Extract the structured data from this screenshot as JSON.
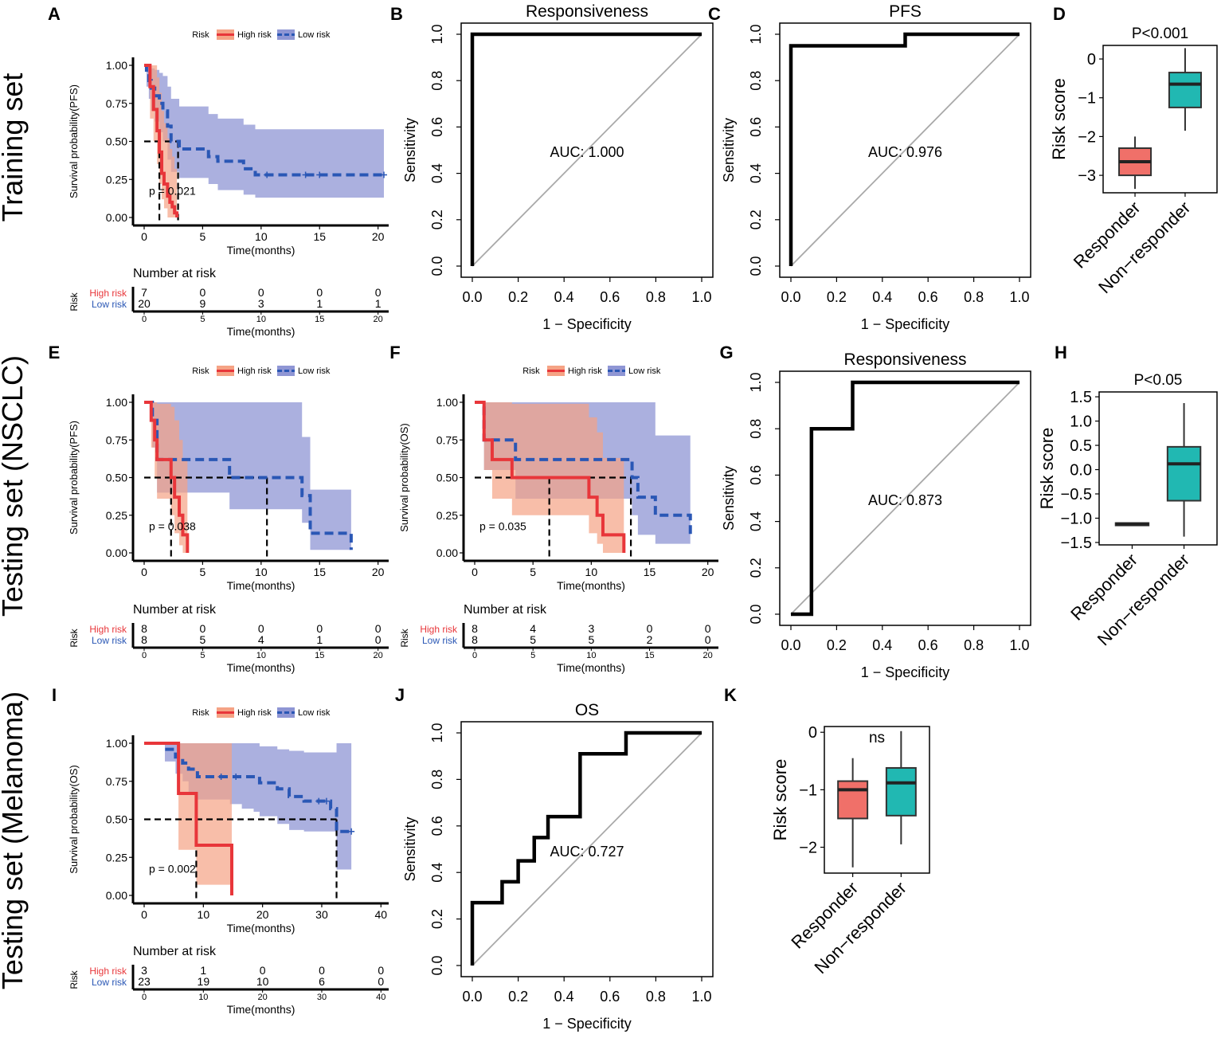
{
  "figure": {
    "width": 1533,
    "height": 1303
  },
  "colors": {
    "high": "#e8363a",
    "high_band": "#f5a385",
    "low": "#2a57b5",
    "low_band": "#8f96d4",
    "box_red": "#f07069",
    "box_teal": "#21b8b2",
    "diag": "#a9a9a9",
    "black": "#000000"
  },
  "row_labels": [
    "Training set",
    "Testing set (NSCLC)",
    "Testing set (Melanoma)"
  ],
  "legend": {
    "title": "Risk",
    "high": "High risk",
    "low": "Low risk"
  },
  "risk_table": {
    "title": "Number at risk",
    "group_label": "Risk",
    "high_label": "High risk",
    "low_label": "Low risk",
    "xlabel": "Time(months)"
  },
  "chart_data": [
    {
      "id": "A",
      "type": "line",
      "subtype": "kaplan-meier",
      "ylabel": "Survival probability(PFS)",
      "xlabel": "Time(months)",
      "xlim": [
        0,
        20.5
      ],
      "ylim": [
        0,
        1
      ],
      "xticks": [
        0,
        5,
        10,
        15,
        20
      ],
      "yticks": [
        0.0,
        0.25,
        0.5,
        0.75,
        1.0
      ],
      "ytick_labels": [
        "0.00",
        "0.25",
        "0.50",
        "0.75",
        "1.00"
      ],
      "pvalue": "p = 0.021",
      "series": [
        {
          "name": "High risk",
          "x": [
            0,
            0.5,
            0.8,
            1.1,
            1.3,
            1.5,
            1.7,
            2.0,
            2.2,
            2.4,
            2.6,
            2.8
          ],
          "y": [
            1.0,
            0.86,
            0.71,
            0.57,
            0.43,
            0.29,
            0.22,
            0.14,
            0.1,
            0.07,
            0.03,
            0.0
          ],
          "band_x": [
            0,
            0.5,
            0.8,
            1.1,
            1.3,
            1.5,
            1.7,
            2.0,
            2.2,
            2.4,
            2.6,
            2.8
          ],
          "band_lo": [
            1.0,
            0.65,
            0.5,
            0.35,
            0.22,
            0.12,
            0.06,
            0.0,
            0.0,
            0.0,
            0.0,
            0.0
          ],
          "band_hi": [
            1.0,
            1.0,
            1.0,
            0.92,
            0.82,
            0.7,
            0.62,
            0.52,
            0.45,
            0.4,
            0.32,
            0.28
          ]
        },
        {
          "name": "Low risk",
          "x": [
            0,
            0.2,
            0.4,
            0.6,
            0.9,
            1.3,
            1.6,
            2.0,
            2.3,
            3.0,
            5.5,
            6.3,
            7.0,
            8.5,
            9.5,
            20.5
          ],
          "y": [
            1.0,
            0.95,
            0.9,
            0.85,
            0.8,
            0.75,
            0.7,
            0.6,
            0.5,
            0.45,
            0.4,
            0.37,
            0.37,
            0.32,
            0.28,
            0.28
          ],
          "band_x": [
            0,
            0.2,
            0.4,
            0.6,
            0.9,
            1.3,
            1.6,
            2.0,
            2.3,
            3.0,
            5.5,
            6.3,
            7.0,
            8.5,
            9.5,
            20.5
          ],
          "band_lo": [
            1.0,
            0.86,
            0.78,
            0.7,
            0.63,
            0.56,
            0.5,
            0.38,
            0.3,
            0.26,
            0.22,
            0.18,
            0.18,
            0.15,
            0.13,
            0.13
          ],
          "band_hi": [
            1.0,
            1.0,
            1.0,
            0.98,
            0.97,
            0.95,
            0.93,
            0.86,
            0.78,
            0.73,
            0.68,
            0.65,
            0.65,
            0.61,
            0.58,
            0.58
          ],
          "censor_x": [
            10.5,
            13.8,
            15.0,
            20.5
          ]
        }
      ],
      "median_x": [
        1.3,
        2.9
      ],
      "table": {
        "high": [
          "7",
          "0",
          "0",
          "0",
          "0"
        ],
        "low": [
          "20",
          "9",
          "3",
          "1",
          "1"
        ],
        "ticks": [
          "0",
          "5",
          "10",
          "15",
          "20"
        ]
      }
    },
    {
      "id": "B",
      "type": "line",
      "subtype": "roc",
      "title": "Responsiveness",
      "xlabel": "1 − Specificity",
      "ylabel": "Sensitivity",
      "xlim": [
        0,
        1
      ],
      "ylim": [
        0,
        1
      ],
      "ticks": [
        "0.0",
        "0.2",
        "0.4",
        "0.6",
        "0.8",
        "1.0"
      ],
      "auc": "AUC: 1.000",
      "x": [
        0,
        0,
        1
      ],
      "y": [
        0,
        1,
        1
      ]
    },
    {
      "id": "C",
      "type": "line",
      "subtype": "roc",
      "title": "PFS",
      "xlabel": "1 − Specificity",
      "ylabel": "Sensitivity",
      "xlim": [
        0,
        1
      ],
      "ylim": [
        0,
        1
      ],
      "ticks": [
        "0.0",
        "0.2",
        "0.4",
        "0.6",
        "0.8",
        "1.0"
      ],
      "auc": "AUC: 0.976",
      "x": [
        0,
        0,
        0.5,
        0.5,
        1
      ],
      "y": [
        0,
        0.95,
        0.95,
        1,
        1
      ]
    },
    {
      "id": "D",
      "type": "box",
      "title": "P<0.001",
      "ylabel": "Risk score",
      "ylim": [
        -3.45,
        0.35
      ],
      "yticks": [
        0,
        -1,
        -2,
        -3
      ],
      "ytick_labels": [
        "0",
        "−1",
        "−2",
        "−3"
      ],
      "categories": [
        "Responder",
        "Non−responder"
      ],
      "boxes": [
        {
          "min": -3.35,
          "q1": -3.0,
          "median": -2.65,
          "q3": -2.3,
          "max": -2.0
        },
        {
          "min": -1.85,
          "q1": -1.25,
          "median": -0.65,
          "q3": -0.35,
          "max": 0.28
        }
      ]
    },
    {
      "id": "E",
      "type": "line",
      "subtype": "kaplan-meier",
      "ylabel": "Survival probability(PFS)",
      "xlabel": "Time(months)",
      "xlim": [
        0,
        20.5
      ],
      "ylim": [
        0,
        1
      ],
      "xticks": [
        0,
        5,
        10,
        15,
        20
      ],
      "yticks": [
        0.0,
        0.25,
        0.5,
        0.75,
        1.0
      ],
      "ytick_labels": [
        "0.00",
        "0.25",
        "0.50",
        "0.75",
        "1.00"
      ],
      "pvalue": "p = 0.038",
      "series": [
        {
          "name": "High risk",
          "x": [
            0,
            0.6,
            0.9,
            1.1,
            2.3,
            2.6,
            3.0,
            3.3,
            3.7
          ],
          "y": [
            1.0,
            0.88,
            0.75,
            0.62,
            0.5,
            0.37,
            0.25,
            0.12,
            0.0
          ],
          "band_x": [
            0,
            0.6,
            0.9,
            1.1,
            2.3,
            2.6,
            3.0,
            3.3,
            3.7
          ],
          "band_lo": [
            1.0,
            0.7,
            0.5,
            0.36,
            0.25,
            0.13,
            0.05,
            0.0,
            0.0
          ],
          "band_hi": [
            1.0,
            1.0,
            1.0,
            0.99,
            0.97,
            0.88,
            0.75,
            0.62,
            0.55
          ]
        },
        {
          "name": "Low risk",
          "x": [
            0,
            0.7,
            1.1,
            7.3,
            13.5,
            14.2,
            17.7
          ],
          "y": [
            1.0,
            0.88,
            0.62,
            0.5,
            0.38,
            0.13,
            0.02
          ],
          "band_x": [
            0,
            0.7,
            1.1,
            7.3,
            13.5,
            14.2,
            17.7
          ],
          "band_lo": [
            1.0,
            0.7,
            0.4,
            0.29,
            0.2,
            0.02,
            0.02
          ],
          "band_hi": [
            1.0,
            1.0,
            1.0,
            1.0,
            0.77,
            0.42,
            0.42
          ],
          "censor_x": []
        }
      ],
      "median_x": [
        2.3,
        10.5
      ],
      "table": {
        "high": [
          "8",
          "0",
          "0",
          "0",
          "0"
        ],
        "low": [
          "8",
          "5",
          "4",
          "1",
          "0"
        ],
        "ticks": [
          "0",
          "5",
          "10",
          "15",
          "20"
        ]
      }
    },
    {
      "id": "F",
      "type": "line",
      "subtype": "kaplan-meier",
      "ylabel": "Survival probability(OS)",
      "xlabel": "Time(months)",
      "xlim": [
        0,
        20.5
      ],
      "ylim": [
        0,
        1
      ],
      "xticks": [
        0,
        5,
        10,
        15,
        20
      ],
      "yticks": [
        0.0,
        0.25,
        0.5,
        0.75,
        1.0
      ],
      "ytick_labels": [
        "0.00",
        "0.25",
        "0.50",
        "0.75",
        "1.00"
      ],
      "pvalue": "p = 0.035",
      "series": [
        {
          "name": "High risk",
          "x": [
            0,
            0.8,
            1.5,
            3.2,
            9.8,
            10.5,
            11.0,
            12.8
          ],
          "y": [
            1.0,
            0.75,
            0.62,
            0.5,
            0.37,
            0.25,
            0.12,
            0.0
          ],
          "band_x": [
            0,
            0.8,
            1.5,
            3.2,
            9.8,
            10.5,
            11.0,
            12.8
          ],
          "band_lo": [
            1.0,
            0.55,
            0.36,
            0.25,
            0.13,
            0.06,
            0.0,
            0.0
          ],
          "band_hi": [
            1.0,
            1.0,
            1.0,
            0.99,
            0.9,
            0.8,
            0.63,
            0.55
          ]
        },
        {
          "name": "Low risk",
          "x": [
            0,
            0.8,
            3.5,
            13.5,
            14.0,
            15.5,
            18.5
          ],
          "y": [
            1.0,
            0.75,
            0.62,
            0.5,
            0.37,
            0.25,
            0.12
          ],
          "band_x": [
            0,
            0.8,
            3.5,
            13.5,
            14.0,
            15.5,
            18.5
          ],
          "band_lo": [
            1.0,
            0.55,
            0.36,
            0.25,
            0.12,
            0.06,
            0.05
          ],
          "band_hi": [
            1.0,
            1.0,
            1.0,
            1.0,
            1.0,
            0.78,
            0.6
          ],
          "censor_x": []
        }
      ],
      "median_x": [
        6.4,
        13.4
      ],
      "table": {
        "high": [
          "8",
          "4",
          "3",
          "0",
          "0"
        ],
        "low": [
          "8",
          "5",
          "5",
          "2",
          "0"
        ],
        "ticks": [
          "0",
          "5",
          "10",
          "15",
          "20"
        ]
      }
    },
    {
      "id": "G",
      "type": "line",
      "subtype": "roc",
      "title": "Responsiveness",
      "xlabel": "1 − Specificity",
      "ylabel": "Sensitivity",
      "xlim": [
        0,
        1
      ],
      "ylim": [
        0,
        1
      ],
      "ticks": [
        "0.0",
        "0.2",
        "0.4",
        "0.6",
        "0.8",
        "1.0"
      ],
      "auc": "AUC: 0.873",
      "x": [
        0,
        0.09,
        0.09,
        0.27,
        0.27,
        1
      ],
      "y": [
        0,
        0,
        0.8,
        0.8,
        1,
        1
      ]
    },
    {
      "id": "H",
      "type": "box",
      "title": "P<0.05",
      "ylabel": "Risk score",
      "ylim": [
        -1.55,
        1.6
      ],
      "yticks": [
        1.5,
        1.0,
        0.5,
        0.0,
        -0.5,
        -1.0,
        -1.5
      ],
      "ytick_labels": [
        "1.5",
        "1.0",
        "0.5",
        "0.0",
        "−0.5",
        "−1.0",
        "−1.5"
      ],
      "categories": [
        "Responder",
        "Non−responder"
      ],
      "boxes": [
        {
          "min": -1.14,
          "q1": -1.14,
          "median": -1.12,
          "q3": -1.1,
          "max": -1.1
        },
        {
          "min": -1.38,
          "q1": -0.64,
          "median": 0.12,
          "q3": 0.47,
          "max": 1.37
        }
      ]
    },
    {
      "id": "I",
      "type": "line",
      "subtype": "kaplan-meier",
      "ylabel": "Survival probability(OS)",
      "xlabel": "Time(months)",
      "xlim": [
        0,
        40.5
      ],
      "ylim": [
        0,
        1
      ],
      "xticks": [
        0,
        10,
        20,
        30,
        40
      ],
      "yticks": [
        0.0,
        0.25,
        0.5,
        0.75,
        1.0
      ],
      "ytick_labels": [
        "0.00",
        "0.25",
        "0.50",
        "0.75",
        "1.00"
      ],
      "pvalue": "p = 0.002",
      "series": [
        {
          "name": "High risk",
          "x": [
            0,
            5.8,
            8.8,
            14.8
          ],
          "y": [
            1.0,
            0.67,
            0.33,
            0.0
          ],
          "band_x": [
            0,
            5.8,
            8.8,
            14.8
          ],
          "band_lo": [
            1.0,
            0.3,
            0.07,
            0.07
          ],
          "band_hi": [
            1.0,
            1.0,
            1.0,
            1.0
          ]
        },
        {
          "name": "Low risk",
          "x": [
            0,
            3.5,
            5.3,
            6.5,
            7.5,
            9.0,
            14.5,
            16.5,
            18.5,
            19.5,
            22.5,
            24.5,
            27.0,
            31.5,
            32.5,
            35.0
          ],
          "y": [
            1.0,
            0.96,
            0.91,
            0.87,
            0.83,
            0.78,
            0.78,
            0.78,
            0.78,
            0.74,
            0.7,
            0.65,
            0.62,
            0.57,
            0.42,
            0.42
          ],
          "band_x": [
            0,
            3.5,
            5.3,
            6.5,
            7.5,
            9.0,
            14.5,
            16.5,
            18.5,
            19.5,
            22.5,
            24.5,
            27.0,
            31.5,
            32.5,
            35.0
          ],
          "band_lo": [
            1.0,
            0.88,
            0.8,
            0.75,
            0.67,
            0.63,
            0.6,
            0.57,
            0.55,
            0.52,
            0.47,
            0.43,
            0.42,
            0.42,
            0.17,
            0.17
          ],
          "band_hi": [
            1.0,
            1.0,
            1.0,
            1.0,
            1.0,
            1.0,
            1.0,
            1.0,
            1.0,
            0.98,
            0.96,
            0.95,
            0.94,
            0.94,
            1.0,
            1.0
          ],
          "censor_x": [
            13.0,
            15.5,
            29.5,
            30.8,
            35.0
          ]
        }
      ],
      "median_x": [
        8.8,
        32.5
      ],
      "table": {
        "high": [
          "3",
          "1",
          "0",
          "0",
          "0"
        ],
        "low": [
          "23",
          "19",
          "10",
          "6",
          "0"
        ],
        "ticks": [
          "0",
          "10",
          "20",
          "30",
          "40"
        ]
      }
    },
    {
      "id": "J",
      "type": "line",
      "subtype": "roc",
      "title": "OS",
      "xlabel": "1 − Specificity",
      "ylabel": "Sensitivity",
      "xlim": [
        0,
        1
      ],
      "ylim": [
        0,
        1
      ],
      "ticks": [
        "0.0",
        "0.2",
        "0.4",
        "0.6",
        "0.8",
        "1.0"
      ],
      "auc": "AUC: 0.727",
      "x": [
        0,
        0,
        0.13,
        0.13,
        0.2,
        0.2,
        0.27,
        0.27,
        0.33,
        0.33,
        0.47,
        0.47,
        0.67,
        0.67,
        1
      ],
      "y": [
        0,
        0.27,
        0.27,
        0.36,
        0.36,
        0.45,
        0.45,
        0.55,
        0.55,
        0.64,
        0.64,
        0.91,
        0.91,
        1,
        1
      ]
    },
    {
      "id": "K",
      "type": "box",
      "title": "ns",
      "ylabel": "Risk score",
      "ylim": [
        -2.45,
        0.1
      ],
      "yticks": [
        0,
        -1,
        -2
      ],
      "ytick_labels": [
        "0",
        "−1",
        "−2"
      ],
      "categories": [
        "Responder",
        "Non−responder"
      ],
      "boxes": [
        {
          "min": -2.35,
          "q1": -1.5,
          "median": -1.0,
          "q3": -0.85,
          "max": -0.45
        },
        {
          "min": -1.95,
          "q1": -1.45,
          "median": -0.88,
          "q3": -0.62,
          "max": 0.02
        }
      ]
    }
  ]
}
